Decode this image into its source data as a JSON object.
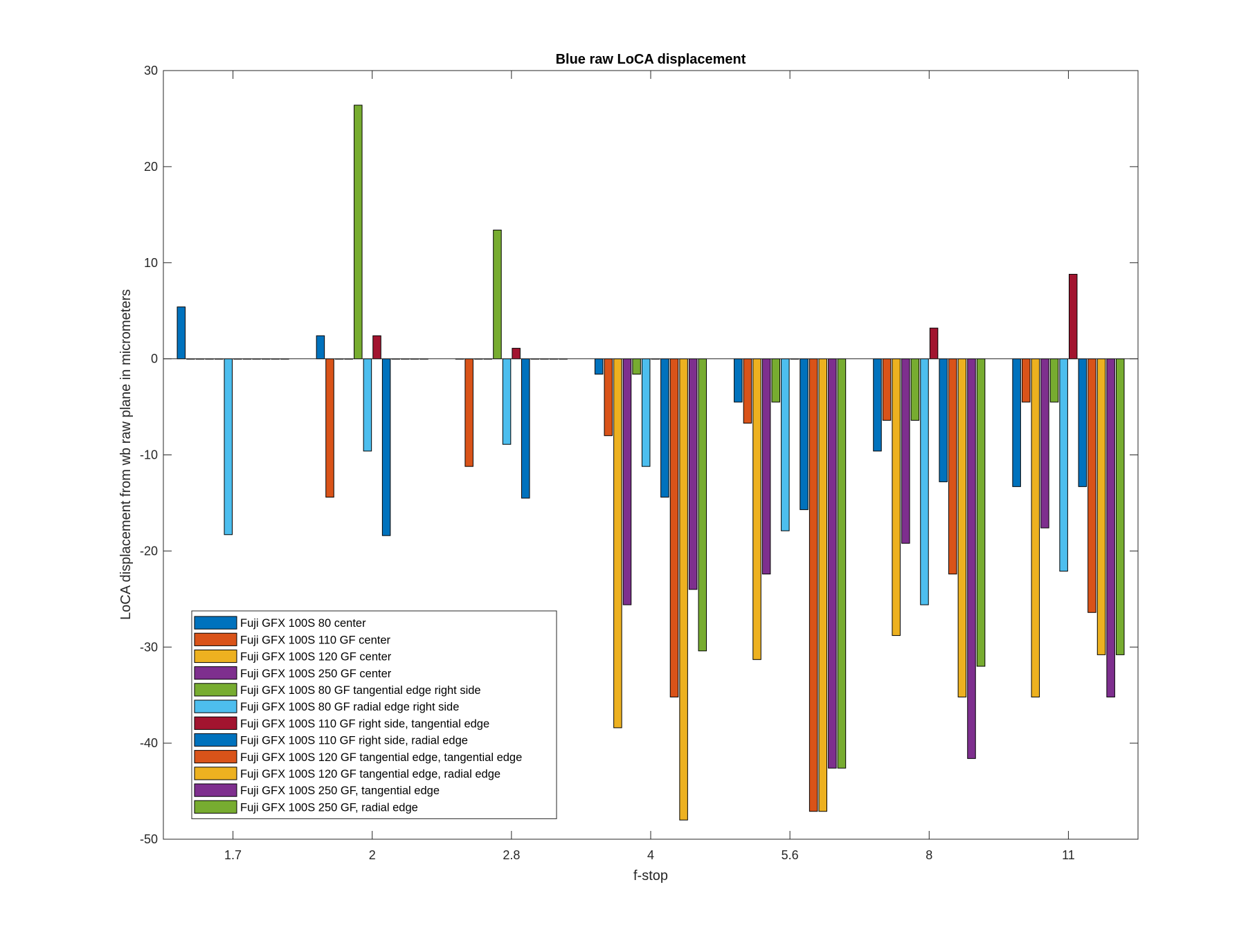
{
  "chart_data": {
    "type": "bar",
    "title": "Blue raw  LoCA displacement",
    "xlabel": "f-stop",
    "ylabel": "LoCA displacement from wb raw plane in micrometers",
    "categories": [
      "1.7",
      "2",
      "2.8",
      "4",
      "5.6",
      "8",
      "11"
    ],
    "ylim": [
      -50,
      30
    ],
    "yticks": [
      30,
      20,
      10,
      0,
      -10,
      -20,
      -30,
      -40,
      -50
    ],
    "grid": false,
    "legend_position": "bottom-left",
    "series": [
      {
        "name": "Fuji GFX 100S 80 center",
        "color": "#0072BD",
        "values": [
          5.4,
          2.4,
          0,
          -1.6,
          -4.5,
          -9.6,
          -13.3
        ]
      },
      {
        "name": "Fuji GFX 100S 110 GF center",
        "color": "#D95319",
        "values": [
          0,
          -14.4,
          -11.2,
          -8,
          -6.7,
          -6.4,
          -4.5
        ]
      },
      {
        "name": "Fuji GFX 100S 120 GF center",
        "color": "#EDB120",
        "values": [
          0,
          0,
          0,
          -38.4,
          -31.3,
          -28.8,
          -35.2
        ]
      },
      {
        "name": "Fuji GFX 100S 250 GF center",
        "color": "#7E2F8E",
        "values": [
          0,
          0,
          0,
          -25.6,
          -22.4,
          -19.2,
          -17.6
        ]
      },
      {
        "name": "Fuji GFX 100S 80 GF tangential edge right side",
        "color": "#77AC30",
        "values": [
          0,
          26.4,
          13.4,
          -1.6,
          -4.5,
          -6.4,
          -4.5
        ]
      },
      {
        "name": "Fuji GFX 100S 80 GF radial edge right side",
        "color": "#4DBEEE",
        "values": [
          -18.3,
          -9.6,
          -8.9,
          -11.2,
          -17.9,
          -25.6,
          -22.1
        ]
      },
      {
        "name": "Fuji GFX 100S 110 GF right side, tangential edge",
        "color": "#A2142F",
        "values": [
          0,
          2.4,
          1.1,
          0,
          0,
          3.2,
          8.8
        ]
      },
      {
        "name": "Fuji GFX 100S 110 GF right side, radial edge",
        "color": "#0072BD",
        "values": [
          0,
          -18.4,
          -14.5,
          -14.4,
          -15.7,
          -12.8,
          -13.3
        ]
      },
      {
        "name": "Fuji GFX 100S 120 GF tangential edge, tangential edge",
        "color": "#D95319",
        "values": [
          0,
          0,
          0,
          -35.2,
          -47.1,
          -22.4,
          -26.4
        ]
      },
      {
        "name": "Fuji GFX 100S 120 GF tangential edge, radial edge",
        "color": "#EDB120",
        "values": [
          0,
          0,
          0,
          -48,
          -47.1,
          -35.2,
          -30.8
        ]
      },
      {
        "name": "Fuji GFX 100S 250 GF, tangential edge",
        "color": "#7E2F8E",
        "values": [
          0,
          0,
          0,
          -24,
          -42.6,
          -41.6,
          -35.2
        ]
      },
      {
        "name": "Fuji GFX 100S 250 GF, radial edge",
        "color": "#77AC30",
        "values": [
          0,
          0,
          0,
          -30.4,
          -42.6,
          -32,
          -30.8
        ]
      }
    ]
  }
}
